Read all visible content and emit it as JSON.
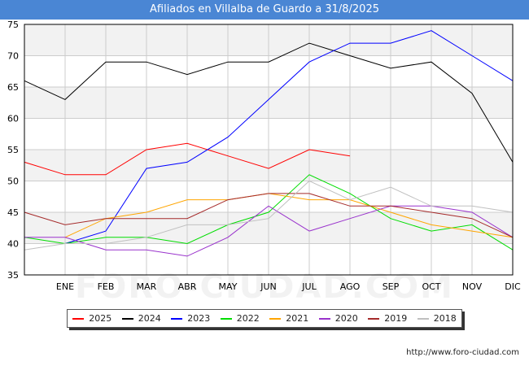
{
  "title": "Afiliados en Villalba de Guardo a 31/8/2025",
  "source": "http://www.foro-ciudad.com",
  "watermark": "FORO-CIUDAD.COM",
  "colors": {
    "title_bg": "#4a86d4",
    "band": "#f2f2f2",
    "grid": "#cccccc",
    "axis": "#000000"
  },
  "chart_data": {
    "type": "line",
    "title": "Afiliados en Villalba de Guardo a 31/8/2025",
    "categories": [
      "",
      "ENE",
      "FEB",
      "MAR",
      "ABR",
      "MAY",
      "JUN",
      "JUL",
      "AGO",
      "SEP",
      "OCT",
      "NOV",
      "DIC"
    ],
    "ylim": [
      35,
      75
    ],
    "yticks": [
      35,
      40,
      45,
      50,
      55,
      60,
      65,
      70,
      75
    ],
    "grid": true,
    "legend_position": "bottom",
    "series": [
      {
        "name": "2025",
        "color": "#ff0000",
        "values": [
          53,
          51,
          51,
          55,
          56,
          54,
          52,
          55,
          54,
          null,
          null,
          null,
          null
        ]
      },
      {
        "name": "2024",
        "color": "#000000",
        "values": [
          66,
          63,
          69,
          69,
          67,
          69,
          69,
          72,
          70,
          68,
          69,
          64,
          53
        ]
      },
      {
        "name": "2023",
        "color": "#0000ff",
        "values": [
          null,
          40,
          42,
          52,
          53,
          57,
          63,
          69,
          72,
          72,
          74,
          70,
          66
        ]
      },
      {
        "name": "2022",
        "color": "#00dd00",
        "values": [
          41,
          40,
          41,
          41,
          40,
          43,
          45,
          51,
          48,
          44,
          42,
          43,
          39
        ]
      },
      {
        "name": "2021",
        "color": "#ffa500",
        "values": [
          null,
          41,
          44,
          45,
          47,
          47,
          48,
          47,
          47,
          45,
          43,
          42,
          41
        ]
      },
      {
        "name": "2020",
        "color": "#9932cc",
        "values": [
          41,
          41,
          39,
          39,
          38,
          41,
          46,
          42,
          44,
          46,
          46,
          45,
          41
        ]
      },
      {
        "name": "2019",
        "color": "#a52a2a",
        "values": [
          45,
          43,
          44,
          44,
          44,
          47,
          48,
          48,
          46,
          46,
          45,
          44,
          41
        ]
      },
      {
        "name": "2018",
        "color": "#c0c0c0",
        "values": [
          39,
          40,
          40,
          41,
          43,
          43,
          44,
          50,
          47,
          49,
          46,
          46,
          45
        ]
      }
    ]
  }
}
